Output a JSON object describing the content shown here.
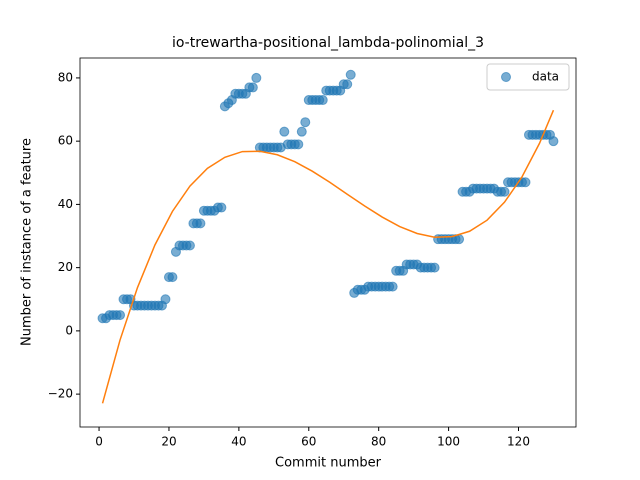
{
  "chart_data": {
    "type": "scatter",
    "title": "io-trewartha-positional_lambda-polinomial_3",
    "x_label": "Commit number",
    "y_label": "Number of instance of a feature",
    "xlim": [
      -5.45,
      136.45
    ],
    "ylim": [
      -30.4,
      86.3
    ],
    "xticks": [
      0,
      20,
      40,
      60,
      80,
      100,
      120
    ],
    "yticks": [
      {
        "value": -20,
        "label": "−20"
      },
      0,
      20,
      40,
      60,
      80
    ],
    "legend": "upper right",
    "series": [
      {
        "name": "data",
        "color": "#1f77b4",
        "x": [
          1,
          2,
          3,
          4,
          5,
          6,
          7,
          8,
          9,
          10,
          11,
          12,
          13,
          14,
          15,
          16,
          17,
          18,
          19,
          20,
          21,
          22,
          23,
          24,
          25,
          26,
          27,
          28,
          29,
          30,
          31,
          32,
          33,
          34,
          35,
          36,
          37,
          38,
          39,
          40,
          41,
          42,
          43,
          44,
          45,
          46,
          47,
          48,
          49,
          50,
          51,
          52,
          53,
          54,
          55,
          56,
          57,
          58,
          59,
          60,
          61,
          62,
          63,
          64,
          65,
          66,
          67,
          68,
          69,
          70,
          71,
          72,
          73,
          74,
          75,
          76,
          77,
          78,
          79,
          80,
          81,
          82,
          83,
          84,
          85,
          86,
          87,
          88,
          89,
          90,
          91,
          92,
          93,
          94,
          95,
          96,
          97,
          98,
          99,
          100,
          101,
          102,
          103,
          104,
          105,
          106,
          107,
          108,
          109,
          110,
          111,
          112,
          113,
          114,
          115,
          116,
          117,
          118,
          119,
          120,
          121,
          122,
          123,
          124,
          125,
          126,
          127,
          128,
          129,
          130
        ],
        "values": [
          4,
          4,
          5,
          5,
          5,
          5,
          10,
          10,
          10,
          8,
          8,
          8,
          8,
          8,
          8,
          8,
          8,
          8,
          10,
          17,
          17,
          25,
          27,
          27,
          27,
          27,
          34,
          34,
          34,
          38,
          38,
          38,
          38,
          39,
          39,
          71,
          72,
          73,
          75,
          75,
          75,
          75,
          77,
          77,
          80,
          58,
          58,
          58,
          58,
          58,
          58,
          58,
          63,
          59,
          59,
          59,
          59,
          63,
          66,
          73,
          73,
          73,
          73,
          73,
          76,
          76,
          76,
          76,
          76,
          78,
          78,
          81,
          12,
          13,
          13,
          13,
          14,
          14,
          14,
          14,
          14,
          14,
          14,
          14,
          19,
          19,
          19,
          21,
          21,
          21,
          21,
          20,
          20,
          20,
          20,
          20,
          29,
          29,
          29,
          29,
          29,
          29,
          29,
          44,
          44,
          44,
          45,
          45,
          45,
          45,
          45,
          45,
          45,
          44,
          44,
          44,
          47,
          47,
          47,
          47,
          47,
          47,
          62,
          62,
          62,
          62,
          62,
          62,
          62,
          60
        ]
      }
    ],
    "fit": {
      "color": "#ff7f0e",
      "x": [
        1,
        6,
        11,
        16,
        21,
        26,
        31,
        36,
        41,
        46,
        51,
        56,
        61,
        66,
        71,
        76,
        81,
        86,
        91,
        96,
        101,
        106,
        111,
        116,
        121,
        126,
        130
      ],
      "values": [
        -22.9,
        -2.9,
        13.7,
        27.2,
        37.8,
        45.8,
        51.4,
        54.9,
        56.7,
        56.8,
        55.7,
        53.5,
        50.5,
        47.0,
        43.2,
        39.5,
        36.0,
        33.0,
        30.8,
        29.6,
        29.8,
        31.5,
        35.0,
        40.7,
        48.7,
        59.3,
        69.8
      ]
    }
  }
}
